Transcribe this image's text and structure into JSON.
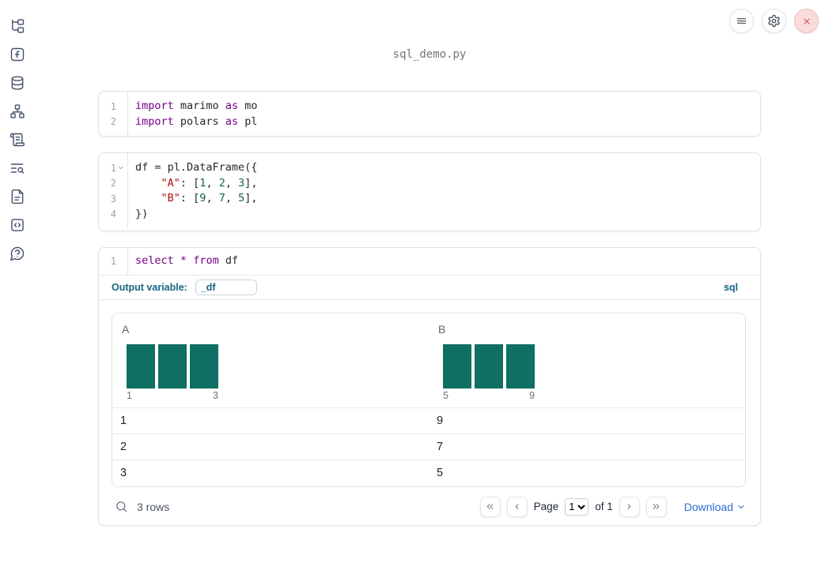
{
  "window": {
    "title": "sql_demo.py"
  },
  "colors": {
    "histogram_bar": "#0e6f62",
    "sql_accent": "#156681",
    "download_link": "#2e6bd6",
    "close_button_bg": "#fbdcdc"
  },
  "topbar": {
    "buttons": [
      {
        "icon": "hamburger-menu-icon"
      },
      {
        "icon": "gear-icon"
      },
      {
        "icon": "close-icon"
      }
    ]
  },
  "sidebar": {
    "items": [
      {
        "icon": "file-tree-icon"
      },
      {
        "icon": "function-square-icon"
      },
      {
        "icon": "database-icon"
      },
      {
        "icon": "dependency-graph-icon"
      },
      {
        "icon": "scroll-icon"
      },
      {
        "icon": "text-search-icon"
      },
      {
        "icon": "document-icon"
      },
      {
        "icon": "code-box-icon"
      },
      {
        "icon": "help-bubble-icon"
      }
    ]
  },
  "cells": {
    "imports": {
      "lines": [
        {
          "n": "1",
          "tokens": [
            {
              "t": "kw",
              "v": "import"
            },
            {
              "t": "pl",
              "v": " marimo "
            },
            {
              "t": "kw",
              "v": "as"
            },
            {
              "t": "pl",
              "v": " mo"
            }
          ]
        },
        {
          "n": "2",
          "tokens": [
            {
              "t": "kw",
              "v": "import"
            },
            {
              "t": "pl",
              "v": " polars "
            },
            {
              "t": "kw",
              "v": "as"
            },
            {
              "t": "pl",
              "v": " pl"
            }
          ]
        }
      ]
    },
    "dataframe": {
      "lines": [
        {
          "n": "1",
          "fold": true,
          "tokens": [
            {
              "t": "pl",
              "v": "df = pl.DataFrame({"
            }
          ]
        },
        {
          "n": "2",
          "tokens": [
            {
              "t": "pl",
              "v": "    "
            },
            {
              "t": "str",
              "v": "\"A\""
            },
            {
              "t": "pl",
              "v": ": ["
            },
            {
              "t": "num",
              "v": "1"
            },
            {
              "t": "pl",
              "v": ", "
            },
            {
              "t": "num",
              "v": "2"
            },
            {
              "t": "pl",
              "v": ", "
            },
            {
              "t": "num",
              "v": "3"
            },
            {
              "t": "pl",
              "v": "],"
            }
          ]
        },
        {
          "n": "3",
          "tokens": [
            {
              "t": "pl",
              "v": "    "
            },
            {
              "t": "str",
              "v": "\"B\""
            },
            {
              "t": "pl",
              "v": ": ["
            },
            {
              "t": "num",
              "v": "9"
            },
            {
              "t": "pl",
              "v": ", "
            },
            {
              "t": "num",
              "v": "7"
            },
            {
              "t": "pl",
              "v": ", "
            },
            {
              "t": "num",
              "v": "5"
            },
            {
              "t": "pl",
              "v": "],"
            }
          ]
        },
        {
          "n": "4",
          "tokens": [
            {
              "t": "pl",
              "v": "})"
            }
          ]
        }
      ]
    },
    "sql": {
      "lines": [
        {
          "n": "1",
          "tokens": [
            {
              "t": "kw",
              "v": "select"
            },
            {
              "t": "pl",
              "v": " "
            },
            {
              "t": "op",
              "v": "*"
            },
            {
              "t": "pl",
              "v": " "
            },
            {
              "t": "kw",
              "v": "from"
            },
            {
              "t": "pl",
              "v": " df"
            }
          ]
        }
      ],
      "output_variable_label": "Output variable:",
      "output_variable_value": "_df",
      "language_badge": "sql"
    }
  },
  "table": {
    "columns": [
      {
        "name": "A",
        "hist": {
          "bars": 3,
          "min_label": "1",
          "max_label": "3"
        }
      },
      {
        "name": "B",
        "hist": {
          "bars": 3,
          "min_label": "5",
          "max_label": "9"
        }
      }
    ],
    "rows": [
      {
        "A": "1",
        "B": "9"
      },
      {
        "A": "2",
        "B": "7"
      },
      {
        "A": "3",
        "B": "5"
      }
    ],
    "footer": {
      "row_count": "3 rows",
      "page_label": "Page",
      "page_value": "1",
      "of_label": "of 1",
      "download_label": "Download"
    }
  }
}
